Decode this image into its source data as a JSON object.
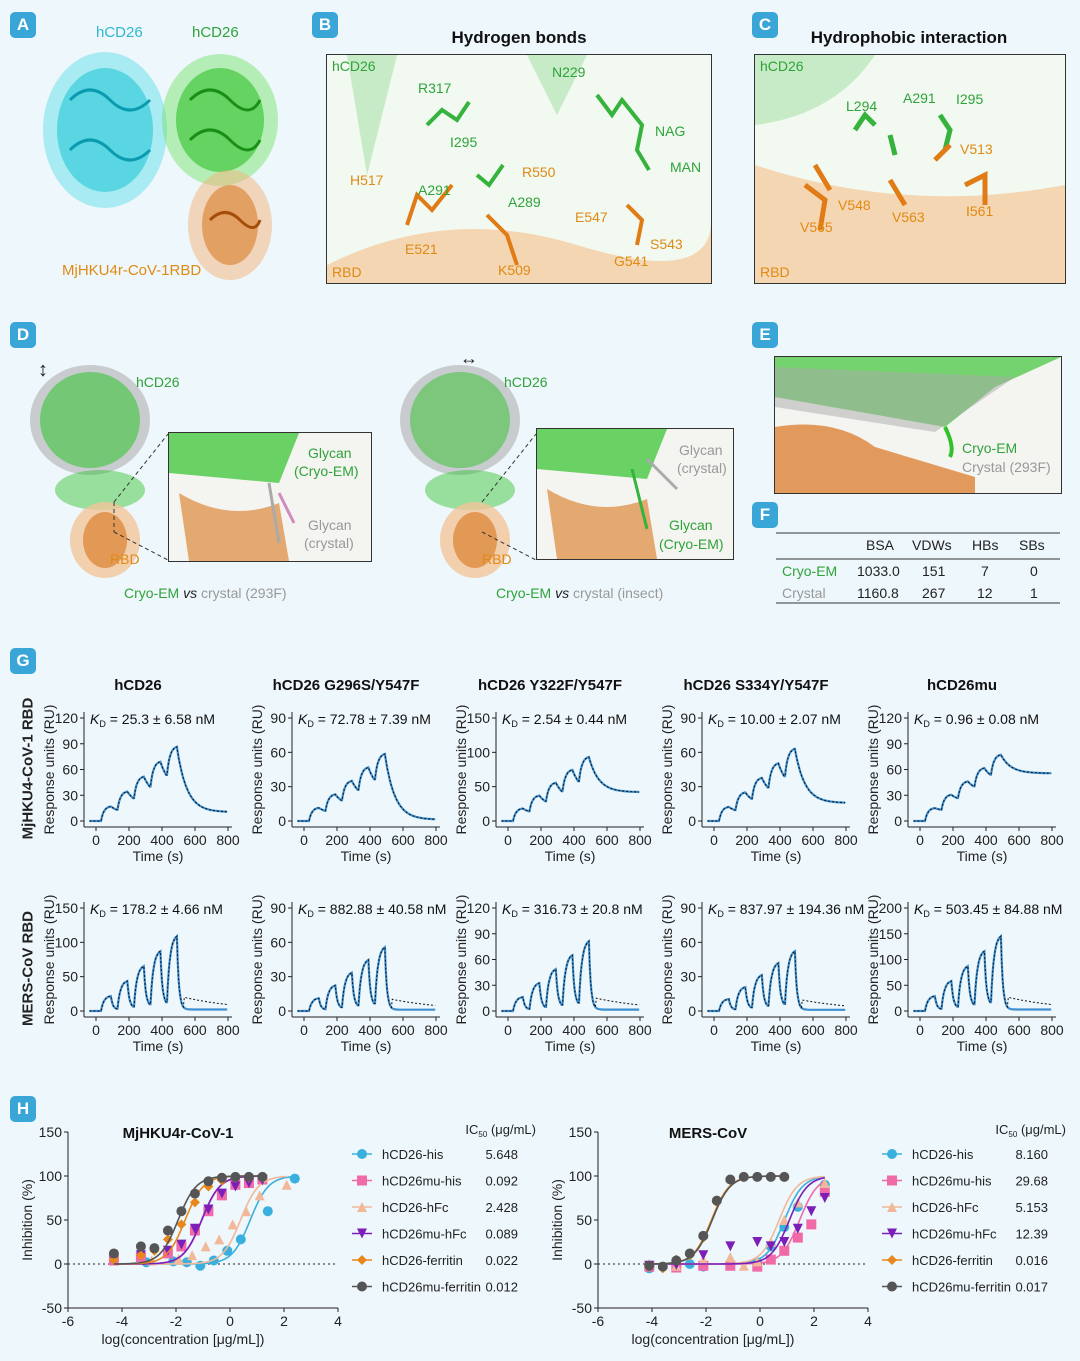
{
  "panels": {
    "A": "A",
    "B": "B",
    "C": "C",
    "D": "D",
    "E": "E",
    "F": "F",
    "G": "G",
    "H": "H"
  },
  "A": {
    "hcd26_left": "hCD26",
    "hcd26_right": "hCD26",
    "rbd": "MjHKU4r-CoV-1RBD"
  },
  "B": {
    "title": "Hydrogen bonds",
    "hcd26": "hCD26",
    "rbd": "RBD",
    "green": [
      "R317",
      "I295",
      "A291",
      "A289",
      "N229",
      "NAG",
      "MAN"
    ],
    "orange": [
      "H517",
      "R550",
      "E521",
      "K509",
      "E547",
      "S543",
      "G541"
    ]
  },
  "C": {
    "title": "Hydrophobic interaction",
    "hcd26": "hCD26",
    "rbd": "RBD",
    "green": [
      "L294",
      "A291",
      "I295"
    ],
    "orange": [
      "V513",
      "V548",
      "V565",
      "V563",
      "I561"
    ]
  },
  "D": {
    "hcd26_1": "hCD26",
    "hcd26_2": "hCD26",
    "rbd_1": "RBD",
    "rbd_2": "RBD",
    "glycan_cryo_1": "Glycan",
    "glycan_cryo_1b": "(Cryo-EM)",
    "glycan_cry_1": "Glycan",
    "glycan_cry_1b": "(crystal)",
    "glycan_cry_2": "Glycan",
    "glycan_cry_2b": "(crystal)",
    "glycan_cryo_2": "Glycan",
    "glycan_cryo_2b": "(Cryo-EM)",
    "cap1_a": "Cryo-EM",
    "cap1_vs": "vs",
    "cap1_b": "crystal (293F)",
    "cap2_a": "Cryo-EM",
    "cap2_vs": "vs",
    "cap2_b": "crystal (insect)"
  },
  "E": {
    "cryo": "Cryo-EM",
    "crystal": "Crystal (293F)"
  },
  "F": {
    "headers": [
      "",
      "BSA",
      "VDWs",
      "HBs",
      "SBs"
    ],
    "rows": [
      [
        "Cryo-EM",
        "1033.0",
        "151",
        "7",
        "0"
      ],
      [
        "Crystal",
        "1160.8",
        "267",
        "12",
        "1"
      ]
    ]
  },
  "G": {
    "row_labels": [
      "MjHKU4-CoV-1 RBD",
      "MERS-CoV RBD"
    ],
    "columns": [
      "hCD26",
      "hCD26 G296S/Y547F",
      "hCD26 Y322F/Y547F",
      "hCD26 S334Y/Y547F",
      "hCD26mu"
    ],
    "ylabel": "Response units (RU)",
    "xlabel": "Time (s)",
    "xticks": [
      "0",
      "200",
      "400",
      "600",
      "800"
    ],
    "kd_prefix": "K",
    "kd_sub": "D",
    "colors": {
      "fit": "#3d8fd1",
      "dot": "#111"
    },
    "kd": [
      [
        "= 25.3 ± 6.58 nM",
        "= 72.78 ± 7.39 nM",
        "= 2.54 ± 0.44 nM",
        "= 10.00 ± 2.07 nM",
        "= 0.96 ± 0.08 nM"
      ],
      [
        "= 178.2 ± 4.66 nM",
        "= 882.88 ± 40.58 nM",
        "= 316.73 ± 20.8 nM",
        "= 837.97 ± 194.36 nM",
        "= 503.45 ± 84.88 nM"
      ]
    ],
    "yticks": [
      [
        [
          "0",
          "30",
          "60",
          "90",
          "120"
        ],
        [
          "0",
          "30",
          "60",
          "90"
        ],
        [
          "0",
          "50",
          "100",
          "150"
        ],
        [
          "0",
          "30",
          "60",
          "90"
        ],
        [
          "0",
          "30",
          "60",
          "90",
          "120"
        ]
      ],
      [
        [
          "0",
          "50",
          "100",
          "150"
        ],
        [
          "0",
          "30",
          "60",
          "90"
        ],
        [
          "0",
          "30",
          "60",
          "90",
          "120"
        ],
        [
          "0",
          "30",
          "60",
          "90"
        ],
        [
          "0",
          "50",
          "100",
          "150",
          "200"
        ]
      ]
    ]
  },
  "chart_data": [
    {
      "type": "line",
      "title": "MjHKU4r-CoV-1",
      "xlabel": "log(concentration [μg/mL])",
      "ylabel": "Inhibition (%)",
      "xlim": [
        -6,
        4
      ],
      "ylim": [
        -50,
        150
      ],
      "xticks": [
        -6,
        -4,
        -2,
        0,
        2,
        4
      ],
      "yticks": [
        -50,
        0,
        50,
        100,
        150
      ],
      "legend_header": "IC",
      "legend_header_sub": "50",
      "legend_header_unit": "(μg/mL)",
      "series": [
        {
          "name": "hCD26-his",
          "ic50": "5.648",
          "color": "#3ab0de",
          "marker": "circle",
          "logic50": 0.75,
          "x": [
            -3.1,
            -2.1,
            -1.6,
            -1.1,
            -0.6,
            -0.1,
            0.4,
            1.4,
            2.4
          ],
          "y": [
            2,
            3,
            2,
            -2,
            4,
            15,
            28,
            60,
            97
          ]
        },
        {
          "name": "hCD26mu-his",
          "ic50": "0.092",
          "color": "#f06aa8",
          "marker": "square",
          "logic50": -1.04,
          "x": [
            -4.3,
            -3.3,
            -2.3,
            -1.8,
            -1.3,
            -0.8,
            -0.3,
            0.2,
            0.7,
            1.2
          ],
          "y": [
            4,
            8,
            12,
            20,
            38,
            60,
            78,
            90,
            92,
            96
          ]
        },
        {
          "name": "hCD26-hFc",
          "ic50": "2.428",
          "color": "#f2b89a",
          "marker": "triangle",
          "logic50": 0.39,
          "x": [
            -2.9,
            -1.9,
            -1.4,
            -0.9,
            -0.4,
            0.1,
            0.6,
            1.1,
            2.1
          ],
          "y": [
            4,
            6,
            10,
            20,
            28,
            45,
            60,
            78,
            90
          ]
        },
        {
          "name": "hCD26mu-hFc",
          "ic50": "0.089",
          "color": "#7a1fb8",
          "marker": "triangle-down",
          "logic50": -1.05,
          "x": [
            -4.3,
            -3.3,
            -2.3,
            -1.8,
            -1.3,
            -0.8,
            -0.3,
            0.2,
            0.7,
            1.2
          ],
          "y": [
            5,
            10,
            15,
            22,
            40,
            62,
            80,
            88,
            92,
            95
          ]
        },
        {
          "name": "hCD26-ferritin",
          "ic50": "0.022",
          "color": "#e8871c",
          "marker": "diamond",
          "logic50": -1.66,
          "x": [
            -4.3,
            -3.3,
            -2.8,
            -2.3,
            -1.8,
            -1.3,
            -0.8,
            -0.3,
            0.2,
            0.7,
            1.2
          ],
          "y": [
            5,
            10,
            15,
            28,
            45,
            70,
            88,
            95,
            98,
            98,
            98
          ]
        },
        {
          "name": "hCD26mu-ferritin",
          "ic50": "0.012",
          "color": "#555555",
          "marker": "circle",
          "logic50": -1.92,
          "x": [
            -4.3,
            -3.3,
            -2.8,
            -2.3,
            -1.8,
            -1.3,
            -0.8,
            -0.3,
            0.2,
            0.7,
            1.2
          ],
          "y": [
            12,
            20,
            18,
            38,
            60,
            80,
            94,
            98,
            99,
            99,
            99
          ]
        }
      ]
    },
    {
      "type": "line",
      "title": "MERS-CoV",
      "xlabel": "log(concentration [μg/mL])",
      "ylabel": "Inhibition (%)",
      "xlim": [
        -6,
        4
      ],
      "ylim": [
        -50,
        150
      ],
      "xticks": [
        -6,
        -4,
        -2,
        0,
        2,
        4
      ],
      "yticks": [
        -50,
        0,
        50,
        100,
        150
      ],
      "legend_header": "IC",
      "legend_header_sub": "50",
      "legend_header_unit": "(μg/mL)",
      "series": [
        {
          "name": "hCD26-his",
          "ic50": "8.160",
          "color": "#3ab0de",
          "marker": "circle",
          "logic50": 0.91,
          "x": [
            -4.1,
            -3.1,
            -2.6,
            -2.1,
            -1.1,
            -0.1,
            0.4,
            0.9,
            1.4,
            2.4
          ],
          "y": [
            -5,
            -2,
            0,
            -3,
            0,
            2,
            20,
            42,
            65,
            90
          ]
        },
        {
          "name": "hCD26mu-his",
          "ic50": "29.68",
          "color": "#f06aa8",
          "marker": "square",
          "logic50": 1.47,
          "x": [
            -4.1,
            -3.1,
            -2.1,
            -1.1,
            -0.1,
            0.4,
            0.9,
            1.4,
            1.9,
            2.4
          ],
          "y": [
            -3,
            -4,
            -2,
            -2,
            -3,
            5,
            15,
            30,
            45,
            82
          ]
        },
        {
          "name": "hCD26-hFc",
          "ic50": "5.153",
          "color": "#f2b89a",
          "marker": "triangle",
          "logic50": 0.71,
          "x": [
            -4.1,
            -3.1,
            -2.1,
            -1.1,
            -0.6,
            -0.1,
            0.4,
            0.9,
            1.4,
            2.4
          ],
          "y": [
            0,
            -2,
            5,
            8,
            -2,
            3,
            25,
            50,
            70,
            92
          ]
        },
        {
          "name": "hCD26mu-hFc",
          "ic50": "12.39",
          "color": "#7a1fb8",
          "marker": "triangle-down",
          "logic50": 1.09,
          "x": [
            -4.1,
            -3.1,
            -2.1,
            -1.1,
            -0.1,
            0.4,
            0.9,
            1.4,
            1.9,
            2.4
          ],
          "y": [
            -2,
            -1,
            10,
            20,
            25,
            20,
            25,
            40,
            60,
            75
          ]
        },
        {
          "name": "hCD26-ferritin",
          "ic50": "0.016",
          "color": "#e8871c",
          "marker": "diamond",
          "logic50": -1.8,
          "x": [
            -4.1,
            -3.6,
            -3.1,
            -2.6,
            -2.1,
            -1.6,
            -1.1,
            -0.6,
            -0.1,
            0.4,
            0.9
          ],
          "y": [
            -3,
            -5,
            5,
            10,
            30,
            70,
            95,
            99,
            99,
            99,
            99
          ]
        },
        {
          "name": "hCD26mu-ferritin",
          "ic50": "0.017",
          "color": "#555555",
          "marker": "circle",
          "logic50": -1.77,
          "x": [
            -4.1,
            -3.6,
            -3.1,
            -2.6,
            -2.1,
            -1.6,
            -1.1,
            -0.6,
            -0.1,
            0.4,
            0.9
          ],
          "y": [
            -2,
            -3,
            4,
            12,
            32,
            72,
            96,
            99,
            99,
            99,
            99
          ]
        }
      ]
    }
  ]
}
